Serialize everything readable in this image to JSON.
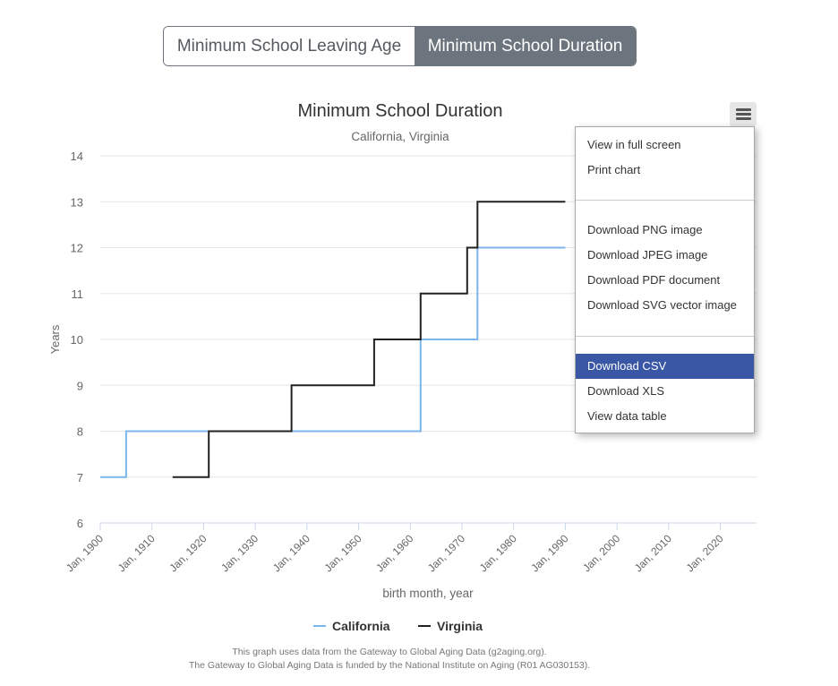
{
  "toggle": {
    "left_label": "Minimum School Leaving Age",
    "right_label": "Minimum School Duration"
  },
  "menu": {
    "items": [
      {
        "label": "View in full screen"
      },
      {
        "label": "Print chart"
      },
      {
        "label": "Download PNG image"
      },
      {
        "label": "Download JPEG image"
      },
      {
        "label": "Download PDF document"
      },
      {
        "label": "Download SVG vector image"
      },
      {
        "label": "Download CSV"
      },
      {
        "label": "Download XLS"
      },
      {
        "label": "View data table"
      }
    ],
    "icon": "hamburger-menu-icon"
  },
  "credits": {
    "line1": "This graph uses data from the Gateway to Global Aging Data (g2aging.org).",
    "line2": "The Gateway to Global Aging Data is funded by the National Institute on Aging (R01 AG030153)."
  },
  "chart_data": {
    "type": "line",
    "step": true,
    "title": "Minimum School Duration",
    "subtitle": "California, Virginia",
    "xlabel": "birth month, year",
    "ylabel": "Years",
    "xlim": [
      1900,
      2027
    ],
    "ylim": [
      6,
      14
    ],
    "yticks": [
      6,
      7,
      8,
      9,
      10,
      11,
      12,
      13,
      14
    ],
    "xticks": [
      1900,
      1910,
      1920,
      1930,
      1940,
      1950,
      1960,
      1970,
      1980,
      1990,
      2000,
      2010,
      2020
    ],
    "xtick_labels": [
      "Jan, 1900",
      "Jan, 1910",
      "Jan, 1920",
      "Jan, 1930",
      "Jan, 1940",
      "Jan, 1950",
      "Jan, 1960",
      "Jan, 1970",
      "Jan, 1980",
      "Jan, 1990",
      "Jan, 2000",
      "Jan, 2010",
      "Jan, 2020"
    ],
    "grid": true,
    "legend": "bottom-center",
    "series": [
      {
        "name": "California",
        "color": "#7cb5ec",
        "points": [
          [
            1900,
            7
          ],
          [
            1905,
            7
          ],
          [
            1905,
            8
          ],
          [
            1962,
            8
          ],
          [
            1962,
            10
          ],
          [
            1973,
            10
          ],
          [
            1973,
            12
          ],
          [
            1990,
            12
          ]
        ]
      },
      {
        "name": "Virginia",
        "color": "#222222",
        "points": [
          [
            1914,
            7
          ],
          [
            1921,
            7
          ],
          [
            1921,
            8
          ],
          [
            1937,
            8
          ],
          [
            1937,
            9
          ],
          [
            1953,
            9
          ],
          [
            1953,
            10
          ],
          [
            1962,
            10
          ],
          [
            1962,
            11
          ],
          [
            1971,
            11
          ],
          [
            1971,
            12
          ],
          [
            1973,
            12
          ],
          [
            1973,
            13
          ],
          [
            1990,
            13
          ]
        ]
      }
    ]
  }
}
